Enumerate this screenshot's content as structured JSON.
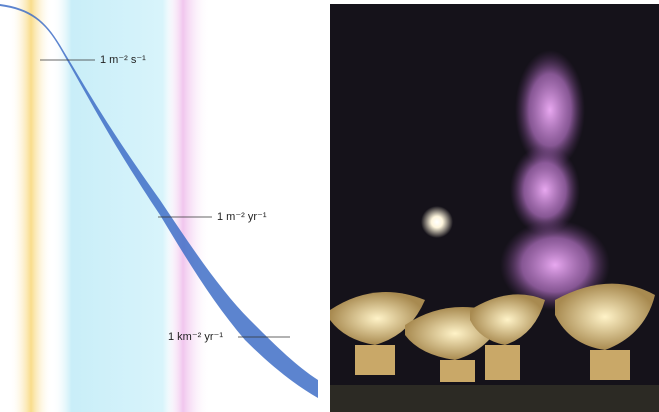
{
  "annotations": [
    {
      "label": "1 m⁻² s⁻¹"
    },
    {
      "label": "1 m⁻² yr⁻¹"
    },
    {
      "label": "1 km⁻² yr⁻¹"
    }
  ]
}
